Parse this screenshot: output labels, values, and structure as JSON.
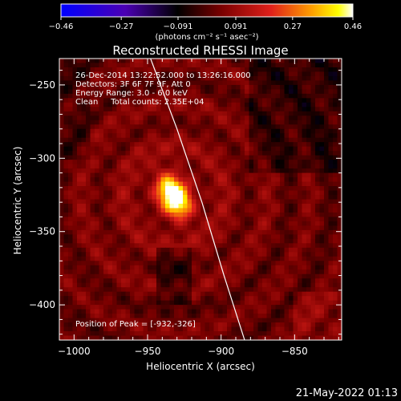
{
  "chart_data": {
    "type": "heatmap",
    "title": "Reconstructed RHESSI Image",
    "xlabel": "Heliocentric X (arcsec)",
    "ylabel": "Heliocentric Y (arcsec)",
    "xlim": [
      -1010,
      -818
    ],
    "ylim": [
      -424,
      -232
    ],
    "xticks": [
      {
        "value": -1000,
        "label": "−1000"
      },
      {
        "value": -950,
        "label": "−950"
      },
      {
        "value": -900,
        "label": "−900"
      },
      {
        "value": -850,
        "label": "−850"
      }
    ],
    "yticks": [
      {
        "value": -250,
        "label": "−250"
      },
      {
        "value": -300,
        "label": "−300"
      },
      {
        "value": -350,
        "label": "−350"
      },
      {
        "value": -400,
        "label": "−400"
      }
    ],
    "colorbar": {
      "min": -0.46,
      "max": 0.46,
      "ticks": [
        {
          "value": -0.46,
          "label": "−0.46"
        },
        {
          "value": -0.27,
          "label": "−0.27"
        },
        {
          "value": -0.091,
          "label": "−0.091"
        },
        {
          "value": 0.091,
          "label": "0.091"
        },
        {
          "value": 0.27,
          "label": "0.27"
        },
        {
          "value": 0.46,
          "label": "0.46"
        }
      ],
      "unit_label": "(photons cm⁻² s⁻¹ asec⁻²)",
      "colors": [
        "#0000ff",
        "#4b00b4",
        "#000000",
        "#7a0000",
        "#e0201a",
        "#ffa000",
        "#ffff00",
        "#ffffff"
      ]
    },
    "info_lines": [
      "26-Dec-2014 13:22:52.000 to 13:26:16.000",
      "Detectors: 3F 6F 7F 9F, Att 0",
      "Energy Range: 3.0 - 6.0 keV",
      "Clean     Total counts: 2.35E+04"
    ],
    "peak": {
      "x": -932,
      "y": -326,
      "label": "Position of Peak = [-932,-326]"
    },
    "limb": [
      [
        -948,
        -232
      ],
      [
        -930,
        -280
      ],
      [
        -913,
        -330
      ],
      [
        -898,
        -380
      ],
      [
        -884,
        -424
      ]
    ]
  },
  "footer": {
    "timestamp": "21-May-2022 01:13"
  }
}
